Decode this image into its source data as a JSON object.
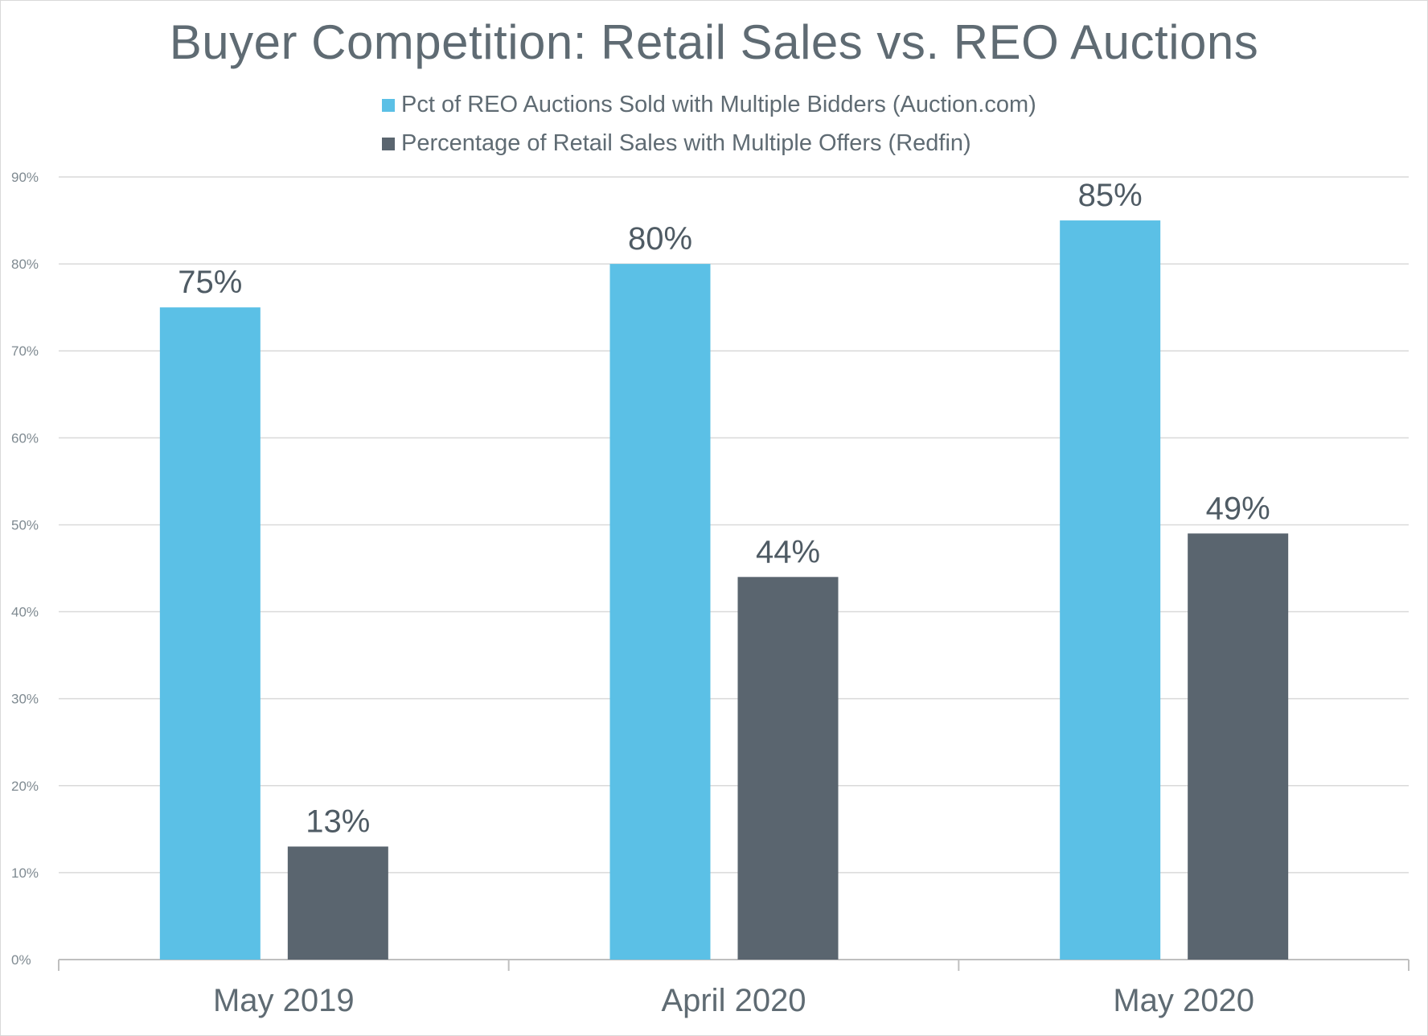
{
  "chart_data": {
    "type": "bar",
    "title": "Buyer Competition: Retail Sales vs. REO Auctions",
    "categories": [
      "May 2019",
      "April 2020",
      "May 2020"
    ],
    "series": [
      {
        "name": "Pct of REO Auctions Sold with Multiple Bidders (Auction.com)",
        "color": "#5bc0e6",
        "values": [
          75,
          80,
          85
        ],
        "labels": [
          "75%",
          "80%",
          "85%"
        ]
      },
      {
        "name": "Percentage of Retail Sales with Multiple Offers (Redfin)",
        "color": "#5a656f",
        "values": [
          13,
          44,
          49
        ],
        "labels": [
          "13%",
          "44%",
          "49%"
        ]
      }
    ],
    "yticks": [
      "0%",
      "10%",
      "20%",
      "30%",
      "40%",
      "50%",
      "60%",
      "70%",
      "80%",
      "90%"
    ],
    "ylim": [
      0,
      90
    ],
    "xlabel": "",
    "ylabel": "",
    "grid": true,
    "legend_position": "top"
  }
}
